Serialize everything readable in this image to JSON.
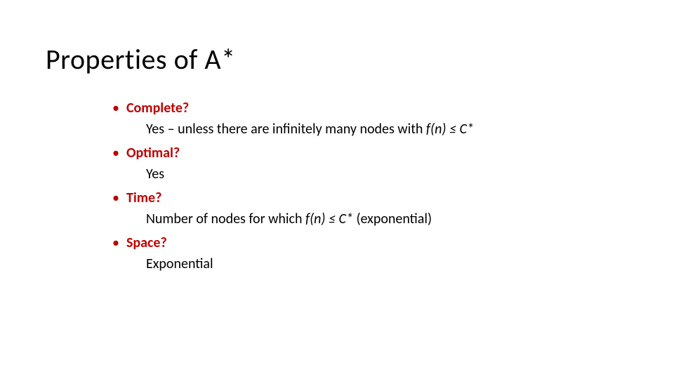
{
  "slide": {
    "title": "Properties of A*",
    "title_fontsize": 40,
    "title_color": "#000000",
    "bullet_color": "#c00000",
    "question_color": "#c00000",
    "answer_color": "#000000",
    "body_fontsize": 20,
    "background_color": "#ffffff",
    "items": [
      {
        "question": "Complete?",
        "answer_pre": "Yes – unless there are infinitely many nodes with ",
        "answer_ital": "f(n) ≤ C*",
        "answer_post": ""
      },
      {
        "question": "Optimal?",
        "answer_pre": "Yes",
        "answer_ital": "",
        "answer_post": ""
      },
      {
        "question": "Time?",
        "answer_pre": "Number of nodes for which ",
        "answer_ital": "f(n) ≤ C*",
        "answer_post": " (exponential)"
      },
      {
        "question": "Space?",
        "answer_pre": "Exponential",
        "answer_ital": "",
        "answer_post": ""
      }
    ]
  }
}
